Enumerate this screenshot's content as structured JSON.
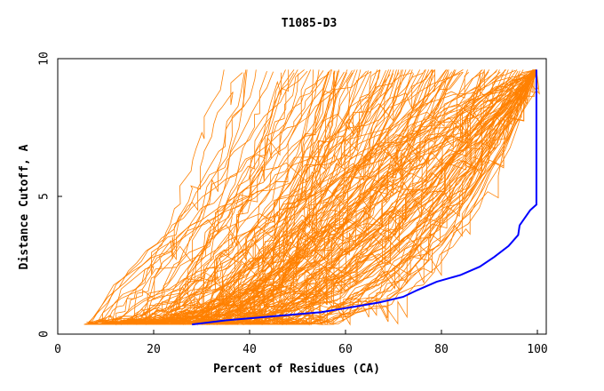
{
  "chart_data": {
    "type": "line",
    "title": "T1085-D3",
    "xlabel": "Percent of Residues (CA)",
    "ylabel": "Distance Cutoff, A",
    "xlim": [
      0,
      100
    ],
    "ylim": [
      0,
      10
    ],
    "x_ticks": [
      "0",
      "20",
      "40",
      "60",
      "80",
      "100"
    ],
    "y_ticks": [
      "0",
      "5",
      "10"
    ],
    "grid": false,
    "legend": "none",
    "colors": {
      "background_series": "#ff8000",
      "highlight_series": "#0000ff",
      "axes": "#000000"
    },
    "highlight_series": {
      "x": [
        28,
        35,
        45,
        55,
        62,
        67,
        72,
        75,
        79,
        84,
        88,
        91,
        94,
        96,
        96.3,
        98.5,
        99.8,
        99.8,
        99.8
      ],
      "y": [
        0.35,
        0.5,
        0.65,
        0.8,
        1.0,
        1.15,
        1.35,
        1.6,
        1.9,
        2.15,
        2.45,
        2.8,
        3.2,
        3.6,
        3.95,
        4.5,
        4.7,
        7.0,
        9.6
      ]
    },
    "background_series_style": {
      "count": 180,
      "x_start_range": [
        6,
        46
      ],
      "y_start": 0.35,
      "y_end": 9.6
    }
  }
}
